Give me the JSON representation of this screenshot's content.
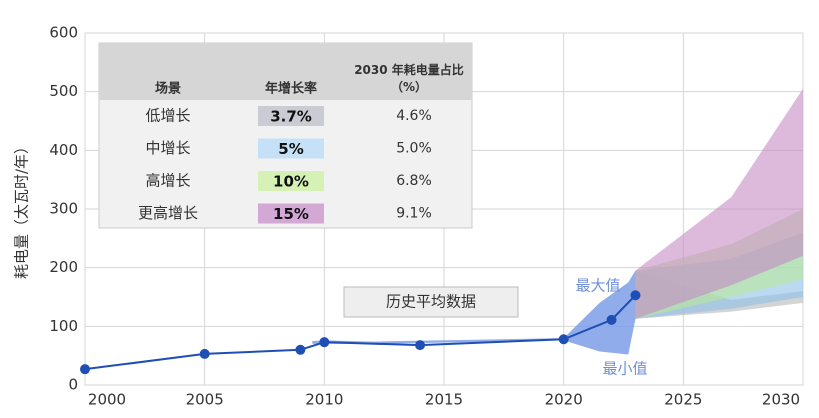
{
  "chart_data": {
    "type": "line",
    "y_label": "耗电量（太瓦时/年）",
    "x": [
      2000,
      2005,
      2009,
      2010,
      2014,
      2020,
      2022,
      2023
    ],
    "values": [
      27,
      53,
      60,
      73,
      68,
      78,
      111,
      153
    ],
    "color": "#1f4fb4",
    "history_band": {
      "x": [
        2009.5,
        2010,
        2012,
        2020,
        2021.5,
        2022.7,
        2023
      ],
      "high": [
        75,
        76,
        74,
        80,
        140,
        175,
        195
      ],
      "low": [
        70,
        70,
        70,
        76,
        57,
        52,
        113
      ],
      "color": "#7c9ee8"
    },
    "bands": [
      {
        "x": [
          2023,
          2027,
          2030
        ],
        "high": [
          195,
          145,
          160
        ],
        "low": [
          113,
          125,
          140
        ],
        "color": "#b8b8b8"
      },
      {
        "x": [
          2023,
          2027,
          2030
        ],
        "high": [
          195,
          215,
          260
        ],
        "low": [
          113,
          130,
          150
        ],
        "color": "#8ec1ea"
      },
      {
        "x": [
          2023,
          2027,
          2030
        ],
        "high": [
          195,
          240,
          300
        ],
        "low": [
          113,
          150,
          180
        ],
        "color": "#b8e89a"
      },
      {
        "x": [
          2023,
          2027,
          2030
        ],
        "high": [
          195,
          320,
          505
        ],
        "low": [
          113,
          170,
          220
        ],
        "color": "#c78ac4"
      }
    ],
    "annotations": {
      "history": "历史平均数据",
      "max": "最大值",
      "min": "最小值"
    },
    "xlim": [
      2000,
      2030
    ],
    "xticks": [
      2000,
      2005,
      2010,
      2015,
      2020,
      2025,
      2030
    ],
    "ylim": [
      0,
      600
    ],
    "yticks": [
      0,
      100,
      200,
      300,
      400,
      500,
      600
    ],
    "grid": true
  },
  "table": {
    "header": [
      "场景",
      "年增长率",
      "2030 年耗电量占比（%）"
    ],
    "rows": [
      {
        "scenario": "低增长",
        "rate": "3.7%",
        "share": "4.6%",
        "color": "#c9cdd3"
      },
      {
        "scenario": "中增长",
        "rate": "5%",
        "share": "5.0%",
        "color": "#c4e1f8"
      },
      {
        "scenario": "高增长",
        "rate": "10%",
        "share": "6.8%",
        "color": "#d6f1b6"
      },
      {
        "scenario": "更高增长",
        "rate": "15%",
        "share": "9.1%",
        "color": "#d3a8d4"
      }
    ]
  }
}
